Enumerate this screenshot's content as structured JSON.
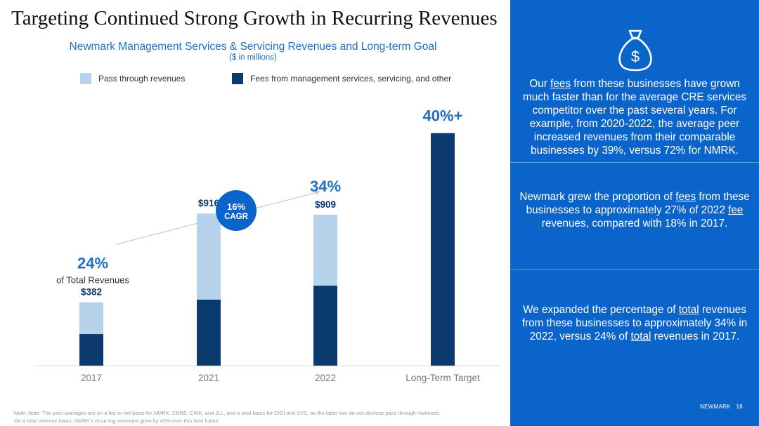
{
  "slide": {
    "title": "Targeting Continued Strong Growth in Recurring Revenues",
    "footnote_line1": "Note: Note: The peer averages are on a fee or net basis for NMRK, CBRE, CWK, and JLL, and a total basis for CIGI and SVS, as the latter two do not disclose pass through revenues.",
    "footnote_line2": "On a total revenue basis, NMRK's recurring revenues grew by 45% over this time frame."
  },
  "chart_data": {
    "type": "bar",
    "stacked": true,
    "title": "Newmark Management Services & Servicing Revenues and Long-term Goal",
    "subtitle": "($ in millions)",
    "categories": [
      "2017",
      "2021",
      "2022",
      "Long-Term Target"
    ],
    "series": [
      {
        "name": "Fees from management services, servicing, and other",
        "color": "#0b3a6e",
        "values": [
          190,
          398,
          482,
          1400
        ]
      },
      {
        "name": "Pass through revenues",
        "color": "#b7d3ec",
        "values": [
          192,
          518,
          427,
          0
        ]
      }
    ],
    "totals": [
      "$382",
      "$916",
      "$909",
      ""
    ],
    "share_labels": [
      "24%",
      "",
      "34%",
      "40%+"
    ],
    "share_sublabels": [
      "of Total Revenues",
      "",
      "",
      ""
    ],
    "cagr_badge": {
      "value": "16%",
      "label": "CAGR"
    },
    "ylim": [
      0,
      1500
    ],
    "legend_position": "top",
    "grid": false
  },
  "panel": {
    "color": "#0a64c9",
    "icon": "money-bag-icon",
    "block1": {
      "p1": "Our ",
      "u1": "fees",
      "p2": " from these businesses have grown much faster than for the average CRE services competitor over the past several years. For example, from 2020-2022, the average peer increased revenues from their comparable businesses by 39%, versus 72% for NMRK."
    },
    "block2": {
      "p1": "Newmark grew the proportion of ",
      "u1": "fees",
      "p2": " from these businesses to approximately 27% of 2022 ",
      "u2": "fee",
      "p3": " revenues, compared with 18% in 2017."
    },
    "block3": {
      "p1": "We expanded the percentage of ",
      "u1": "total",
      "p2": " revenues from these businesses to approximately 34% in 2022, versus 24% of ",
      "u2": "total",
      "p3": " revenues in 2017."
    },
    "brand": "NEWMARK",
    "page_number": "18"
  }
}
